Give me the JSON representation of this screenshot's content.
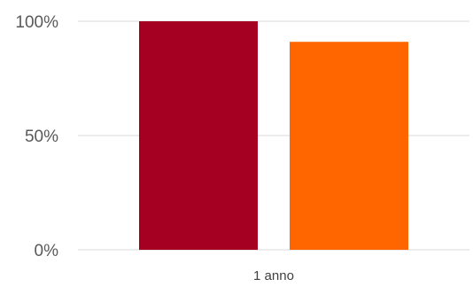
{
  "chart_data": {
    "type": "bar",
    "categories": [
      "1 anno"
    ],
    "series": [
      {
        "values": [
          100
        ],
        "color": "#A50021"
      },
      {
        "values": [
          91
        ],
        "color": "#FF6600"
      }
    ],
    "y_ticks": [
      {
        "value": 0,
        "label": "0%"
      },
      {
        "value": 50,
        "label": "50%"
      },
      {
        "value": 100,
        "label": "100%"
      }
    ],
    "ylim": [
      0,
      100
    ],
    "grid": true,
    "legend": "none",
    "title": "",
    "xlabel": "",
    "ylabel": ""
  }
}
